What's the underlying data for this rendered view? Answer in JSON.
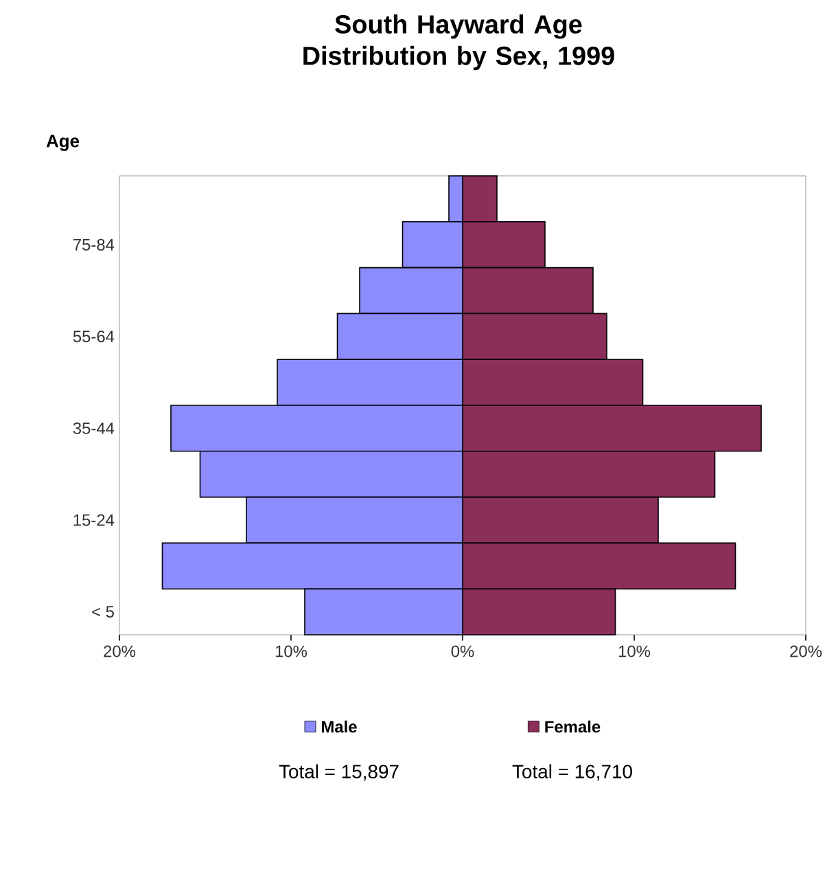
{
  "chart_data": {
    "type": "bar",
    "orientation": "horizontal",
    "stacked": true,
    "title": "South Hayward Age Distribution by Sex, 1999",
    "ylabel": "Age",
    "categories": [
      null,
      "75-84",
      null,
      "55-64",
      null,
      "35-44",
      null,
      "15-24",
      null,
      "< 5"
    ],
    "series": [
      {
        "name": "Male",
        "color": "#8c8cff",
        "values": [
          -0.8,
          -3.5,
          -6.0,
          -7.3,
          -10.8,
          -17.0,
          -15.3,
          -12.6,
          -17.5,
          -9.2
        ]
      },
      {
        "name": "Female",
        "color": "#8b2f5a",
        "values": [
          2.0,
          4.8,
          7.6,
          8.4,
          10.5,
          17.4,
          14.7,
          11.4,
          15.9,
          8.9
        ]
      }
    ],
    "xlim": [
      -20,
      20
    ],
    "xticks": [
      {
        "value": -20,
        "label": "20%"
      },
      {
        "value": -10,
        "label": "10%"
      },
      {
        "value": 0,
        "label": "0%"
      },
      {
        "value": 10,
        "label": "10%"
      },
      {
        "value": 20,
        "label": "20%"
      }
    ],
    "annotations": [
      "Total = 15,897",
      "Total = 16,710"
    ],
    "grid": false,
    "legend": "bottom"
  }
}
